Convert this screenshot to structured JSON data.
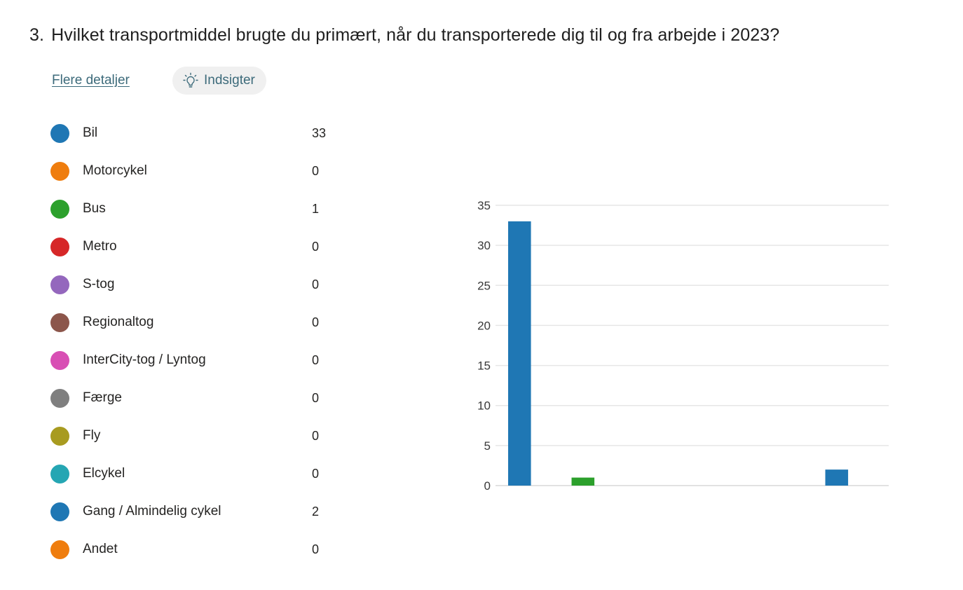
{
  "question": {
    "number": "3.",
    "text": "Hvilket transportmiddel brugte du primært, når du transporterede dig til og fra arbejde i 2023?"
  },
  "actions": {
    "details_label": "Flere detaljer",
    "insights_label": "Indsigter",
    "insights_icon": "lightbulb-icon"
  },
  "chart_data": {
    "type": "bar",
    "categories": [
      "Bil",
      "Motorcykel",
      "Bus",
      "Metro",
      "S-tog",
      "Regionaltog",
      "InterCity-tog / Lyntog",
      "Færge",
      "Fly",
      "Elcykel",
      "Gang / Almindelig cykel",
      "Andet"
    ],
    "values": [
      33,
      0,
      1,
      0,
      0,
      0,
      0,
      0,
      0,
      0,
      2,
      0
    ],
    "colors": [
      "#1f77b4",
      "#ef7d0e",
      "#2ca02c",
      "#d62728",
      "#9467bd",
      "#8c564b",
      "#d84fb4",
      "#7f7f7f",
      "#a89b20",
      "#25a6b3",
      "#1f77b4",
      "#ef7d0e"
    ],
    "yticks": [
      0,
      5,
      10,
      15,
      20,
      25,
      30,
      35
    ],
    "ylim": [
      0,
      35
    ],
    "grid": true,
    "xlabel": "",
    "ylabel": ""
  }
}
